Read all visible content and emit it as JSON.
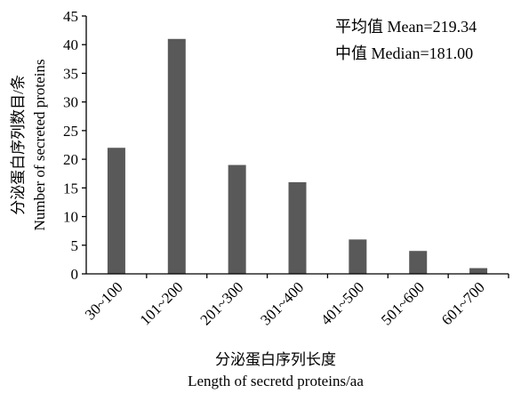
{
  "chart_data": {
    "type": "bar",
    "categories": [
      "30~100",
      "101~200",
      "201~300",
      "301~400",
      "401~500",
      "501~600",
      "601~700"
    ],
    "values": [
      22,
      41,
      19,
      16,
      6,
      4,
      1
    ],
    "xlabel_cn": "分泌蛋白序列长度",
    "xlabel_en": "Length of secretd proteins/aa",
    "ylabel_cn": "分泌蛋白序列数目/条",
    "ylabel_en": "Number of secreted proteins",
    "ylim": [
      0,
      45
    ],
    "yticks": [
      0,
      5,
      10,
      15,
      20,
      25,
      30,
      35,
      40,
      45
    ],
    "annotations": [
      "平均值 Mean=219.34",
      "中值 Median=181.00"
    ],
    "bar_color": "#595959",
    "grid": false,
    "legend": "none"
  }
}
